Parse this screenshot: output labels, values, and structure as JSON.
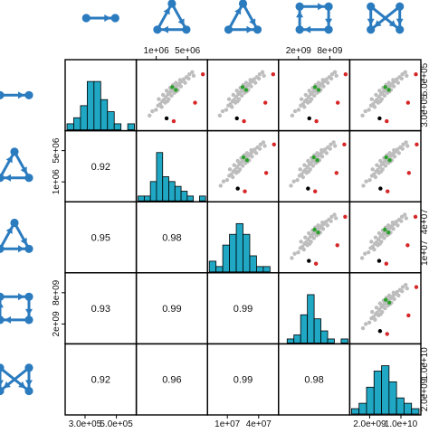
{
  "chart_data": {
    "type": "scatter",
    "panels": 5,
    "variables": [
      {
        "id": "edge",
        "icon": "motif-single-edge-icon",
        "hist_values": [
          1,
          2,
          4,
          8,
          8,
          5,
          3,
          1,
          0,
          1
        ]
      },
      {
        "id": "cycle-triangle",
        "icon": "motif-triangle-cycle-icon",
        "hist_values": [
          1,
          1,
          4,
          10,
          5,
          4,
          3,
          2,
          1,
          0,
          1
        ]
      },
      {
        "id": "feedforward-triangle",
        "icon": "motif-triangle-feedforward-icon",
        "hist_values": [
          2,
          1,
          5,
          7,
          9,
          7,
          3,
          1,
          1,
          0
        ]
      },
      {
        "id": "square",
        "icon": "motif-square-icon",
        "hist_values": [
          0,
          1,
          2,
          7,
          12,
          6,
          3,
          1,
          0,
          1
        ]
      },
      {
        "id": "bowtie",
        "icon": "motif-bowtie-icon",
        "hist_values": [
          1,
          2,
          5,
          8,
          9,
          6,
          3,
          2,
          1
        ]
      }
    ],
    "correlations": [
      {
        "row": 2,
        "col": 1,
        "value": "0.92"
      },
      {
        "row": 3,
        "col": 1,
        "value": "0.95"
      },
      {
        "row": 3,
        "col": 2,
        "value": "0.98"
      },
      {
        "row": 4,
        "col": 1,
        "value": "0.93"
      },
      {
        "row": 4,
        "col": 2,
        "value": "0.99"
      },
      {
        "row": 4,
        "col": 3,
        "value": "0.99"
      },
      {
        "row": 5,
        "col": 1,
        "value": "0.92"
      },
      {
        "row": 5,
        "col": 2,
        "value": "0.96"
      },
      {
        "row": 5,
        "col": 3,
        "value": "0.99"
      },
      {
        "row": 5,
        "col": 4,
        "value": "0.98"
      }
    ],
    "tick_labels": {
      "top": [
        {
          "col": 2,
          "labels": [
            "1e+06",
            "5e+06"
          ]
        },
        {
          "col": 4,
          "labels": [
            "2e+09",
            "8e+09"
          ]
        }
      ],
      "bottom": [
        {
          "col": 1,
          "labels": [
            "3.0e+05",
            "5.0e+05"
          ]
        },
        {
          "col": 3,
          "labels": [
            "1e+07",
            "4e+07"
          ]
        },
        {
          "col": 5,
          "labels": [
            "2.0e+09",
            "1.0e+10"
          ]
        }
      ],
      "left": [
        {
          "row": 2,
          "labels": [
            "1e+06",
            "5e+06"
          ]
        },
        {
          "row": 4,
          "labels": [
            "2e+09",
            "8e+09"
          ]
        }
      ],
      "right": [
        {
          "row": 1,
          "labels": [
            "3.0e+05",
            "5.0e+05"
          ]
        },
        {
          "row": 3,
          "labels": [
            "1e+07",
            "4e+07"
          ]
        },
        {
          "row": 5,
          "labels": [
            "2.0e+09",
            "1.0e+10"
          ]
        }
      ]
    },
    "point_groups": [
      {
        "name": "gray",
        "color": "#bdbdbd"
      },
      {
        "name": "red",
        "color": "#d62728"
      },
      {
        "name": "black",
        "color": "#000000"
      },
      {
        "name": "green",
        "color": "#2ca02c"
      }
    ],
    "scatter_points": {
      "gray": [
        [
          0.18,
          0.78
        ],
        [
          0.22,
          0.72
        ],
        [
          0.27,
          0.7
        ],
        [
          0.3,
          0.64
        ],
        [
          0.33,
          0.62
        ],
        [
          0.36,
          0.58
        ],
        [
          0.38,
          0.56
        ],
        [
          0.41,
          0.52
        ],
        [
          0.44,
          0.48
        ],
        [
          0.46,
          0.46
        ],
        [
          0.48,
          0.44
        ],
        [
          0.5,
          0.42
        ],
        [
          0.52,
          0.4
        ],
        [
          0.54,
          0.38
        ],
        [
          0.57,
          0.36
        ],
        [
          0.6,
          0.33
        ],
        [
          0.63,
          0.3
        ],
        [
          0.66,
          0.27
        ],
        [
          0.7,
          0.24
        ],
        [
          0.74,
          0.2
        ],
        [
          0.78,
          0.17
        ],
        [
          0.35,
          0.66
        ],
        [
          0.4,
          0.6
        ],
        [
          0.45,
          0.55
        ],
        [
          0.49,
          0.5
        ],
        [
          0.53,
          0.46
        ],
        [
          0.58,
          0.42
        ],
        [
          0.62,
          0.37
        ],
        [
          0.42,
          0.43
        ],
        [
          0.47,
          0.39
        ],
        [
          0.51,
          0.35
        ],
        [
          0.55,
          0.32
        ],
        [
          0.31,
          0.55
        ],
        [
          0.37,
          0.49
        ],
        [
          0.43,
          0.58
        ],
        [
          0.56,
          0.44
        ],
        [
          0.61,
          0.28
        ],
        [
          0.68,
          0.32
        ],
        [
          0.73,
          0.26
        ],
        [
          0.8,
          0.22
        ]
      ],
      "red": [
        [
          0.52,
          0.86
        ],
        [
          0.82,
          0.6
        ],
        [
          0.93,
          0.2
        ]
      ],
      "black": [
        [
          0.42,
          0.82
        ]
      ],
      "green": [
        [
          0.55,
          0.42
        ],
        [
          0.5,
          0.38
        ]
      ]
    },
    "bar_color": "#1fa7c4",
    "icon_color": "#2b7bbf"
  }
}
